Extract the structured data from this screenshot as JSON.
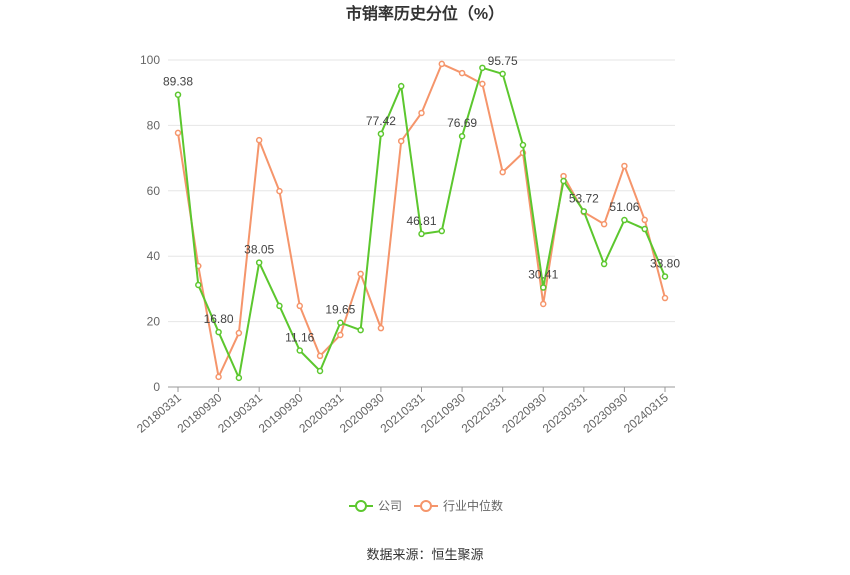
{
  "chart_data": {
    "type": "line",
    "title": "市销率历史分位（%）",
    "source": "数据来源：恒生聚源",
    "categories": [
      "20180331",
      null,
      "20180930",
      null,
      "20190331",
      null,
      "20190930",
      null,
      "20200331",
      null,
      "20200930",
      null,
      "20210331",
      null,
      "20210930",
      null,
      "20220331",
      null,
      "20220930",
      null,
      "20230331",
      null,
      "20230930",
      null,
      "20240315"
    ],
    "series": [
      {
        "name": "公司",
        "color": "#5cc72e",
        "values": [
          89.38,
          31.2,
          16.8,
          2.8,
          38.05,
          24.8,
          11.16,
          4.9,
          19.65,
          17.4,
          77.42,
          92.0,
          46.81,
          47.7,
          76.69,
          97.6,
          95.75,
          74.0,
          30.41,
          63.0,
          53.72,
          37.6,
          51.06,
          48.3,
          33.8
        ],
        "value_labels": [
          "89.38",
          null,
          "16.80",
          null,
          "38.05",
          null,
          "11.16",
          null,
          "19.65",
          null,
          "77.42",
          null,
          "46.81",
          null,
          "76.69",
          null,
          "95.75",
          null,
          "30.41",
          null,
          "53.72",
          null,
          "51.06",
          null,
          "33.80"
        ]
      },
      {
        "name": "行业中位数",
        "color": "#f5956b",
        "values": [
          77.7,
          37.0,
          3.1,
          16.5,
          75.5,
          59.9,
          24.8,
          9.5,
          15.9,
          34.6,
          18.0,
          75.2,
          83.8,
          98.8,
          96.0,
          92.7,
          65.7,
          71.6,
          25.4,
          64.5,
          53.5,
          49.8,
          67.6,
          51.1,
          27.2
        ]
      }
    ],
    "ylim": [
      0,
      100
    ],
    "yticks": [
      0,
      20,
      40,
      60,
      80,
      100
    ],
    "grid": true,
    "legend": "bottom"
  }
}
